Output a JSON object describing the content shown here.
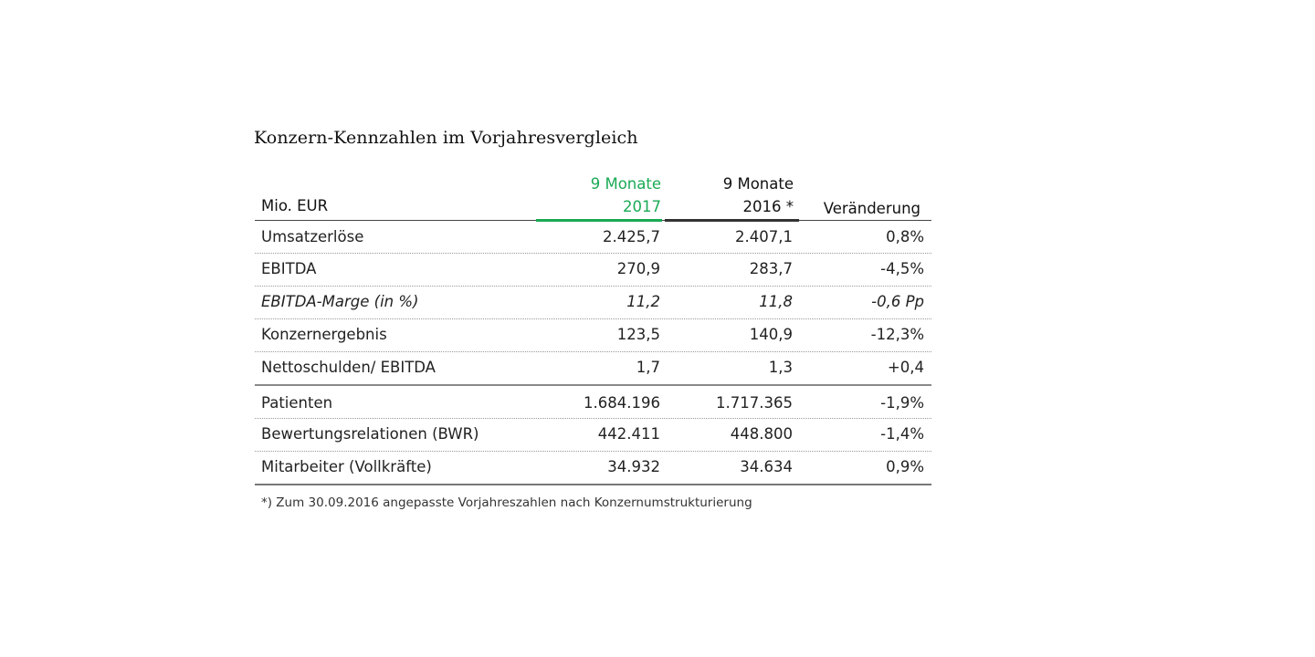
{
  "title": "Konzern-Kennzahlen im Vorjahresvergleich",
  "header": {
    "label": "Mio. EUR",
    "current_line1": "9 Monate",
    "current_line2": "2017",
    "previous_line1": "9 Monate",
    "previous_line2": "2016 *",
    "change": "Veränderung",
    "accent_color": "#1aaa55"
  },
  "rows": [
    {
      "label": "Umsatzerlöse",
      "current": "2.425,7",
      "previous": "2.407,1",
      "change": "0,8%"
    },
    {
      "label": "EBITDA",
      "current": "270,9",
      "previous": "283,7",
      "change": "-4,5%"
    },
    {
      "label": "EBITDA-Marge  (in %)",
      "current": "11,2",
      "previous": "11,8",
      "change": "-0,6 Pp"
    },
    {
      "label": "Konzernergebnis",
      "current": "123,5",
      "previous": "140,9",
      "change": "-12,3%"
    },
    {
      "label": "Nettoschulden/  EBITDA",
      "current": "1,7",
      "previous": "1,3",
      "change": "+0,4"
    },
    {
      "label": "Patienten",
      "current": "1.684.196",
      "previous": "1.717.365",
      "change": "-1,9%"
    },
    {
      "label": "Bewertungsrelationen  (BWR)",
      "current": "442.411",
      "previous": "448.800",
      "change": "-1,4%"
    },
    {
      "label": "Mitarbeiter (Vollkräfte)",
      "current": "34.932",
      "previous": "34.634",
      "change": "0,9%"
    }
  ],
  "footnote": "*) Zum 30.09.2016 angepasste Vorjahreszahlen nach Konzernumstrukturierung"
}
